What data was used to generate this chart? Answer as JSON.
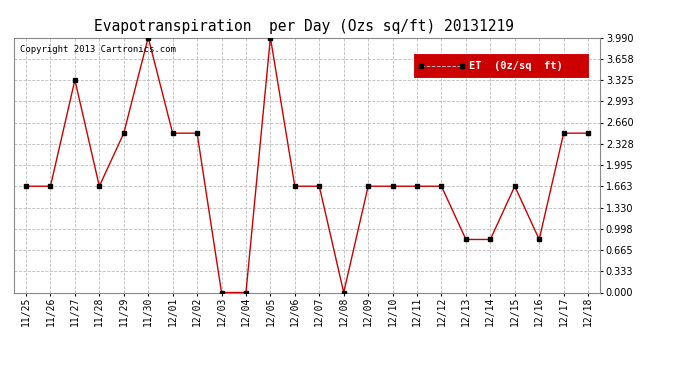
{
  "title": "Evapotranspiration  per Day (Ozs sq/ft) 20131219",
  "copyright": "Copyright 2013 Cartronics.com",
  "legend_label": "ET  (0z/sq  ft)",
  "x_labels": [
    "11/25",
    "11/26",
    "11/27",
    "11/28",
    "11/29",
    "11/30",
    "12/01",
    "12/02",
    "12/03",
    "12/04",
    "12/05",
    "12/06",
    "12/07",
    "12/08",
    "12/09",
    "12/10",
    "12/11",
    "12/12",
    "12/13",
    "12/14",
    "12/15",
    "12/16",
    "12/17",
    "12/18"
  ],
  "y_values": [
    1.663,
    1.663,
    3.325,
    1.663,
    2.493,
    3.99,
    2.493,
    2.493,
    0.0,
    0.0,
    3.99,
    1.663,
    1.663,
    0.0,
    1.663,
    1.663,
    1.663,
    1.663,
    0.83,
    0.83,
    1.663,
    0.83,
    2.493,
    2.493
  ],
  "ylim": [
    0.0,
    3.99
  ],
  "yticks": [
    0.0,
    0.333,
    0.665,
    0.998,
    1.33,
    1.663,
    1.995,
    2.328,
    2.66,
    2.993,
    3.325,
    3.658,
    3.99
  ],
  "line_color": "#cc0000",
  "marker_color": "#000000",
  "bg_color": "#ffffff",
  "grid_color": "#bbbbbb",
  "legend_bg": "#cc0000",
  "legend_text_color": "#ffffff",
  "title_fontsize": 10.5,
  "copyright_fontsize": 6.5,
  "tick_fontsize": 7,
  "legend_fontsize": 7.5
}
